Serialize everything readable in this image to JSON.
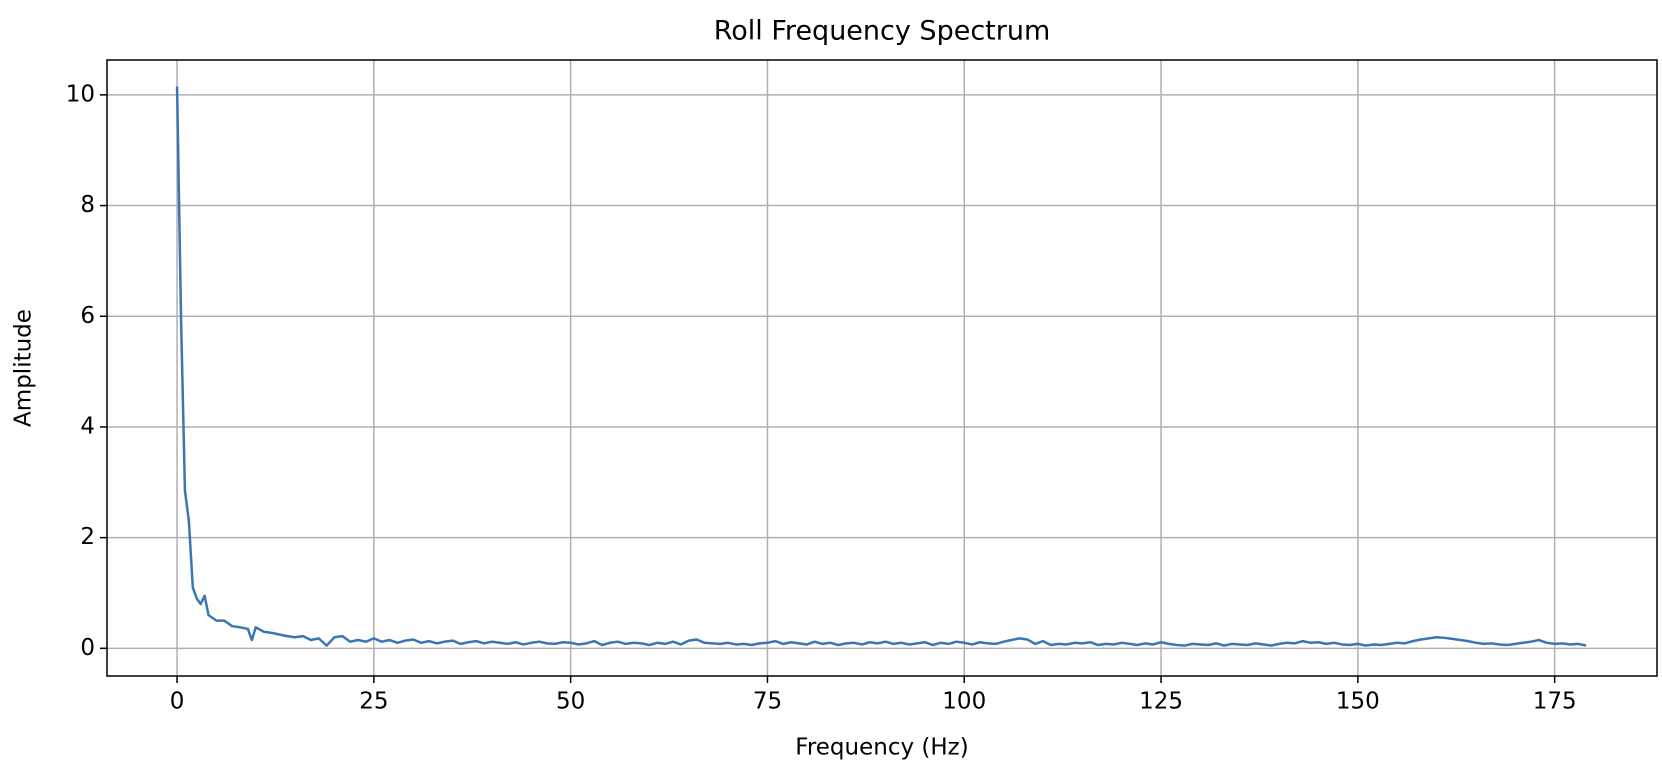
{
  "chart_data": {
    "type": "line",
    "title": "Roll Frequency Spectrum",
    "x_label": "Frequency (Hz)",
    "y_label": "Amplitude",
    "x": [
      0,
      0.5,
      1,
      1.5,
      2,
      2.5,
      3,
      3.5,
      4,
      5,
      6,
      7,
      8,
      9,
      9.5,
      10,
      11,
      12,
      13,
      14,
      15,
      16,
      17,
      18,
      19,
      20,
      21,
      22,
      23,
      24,
      25,
      26,
      27,
      28,
      29,
      30,
      31,
      32,
      33,
      34,
      35,
      36,
      37,
      38,
      39,
      40,
      41,
      42,
      43,
      44,
      45,
      46,
      47,
      48,
      49,
      50,
      51,
      52,
      53,
      54,
      55,
      56,
      57,
      58,
      59,
      60,
      61,
      62,
      63,
      64,
      65,
      66,
      67,
      68,
      69,
      70,
      71,
      72,
      73,
      74,
      75,
      76,
      77,
      78,
      79,
      80,
      81,
      82,
      83,
      84,
      85,
      86,
      87,
      88,
      89,
      90,
      91,
      92,
      93,
      94,
      95,
      96,
      97,
      98,
      99,
      100,
      101,
      102,
      103,
      104,
      105,
      106,
      107,
      108,
      109,
      110,
      111,
      112,
      113,
      114,
      115,
      116,
      117,
      118,
      119,
      120,
      121,
      122,
      123,
      124,
      125,
      126,
      127,
      128,
      129,
      130,
      131,
      132,
      133,
      134,
      135,
      136,
      137,
      138,
      139,
      140,
      141,
      142,
      143,
      144,
      145,
      146,
      147,
      148,
      149,
      150,
      151,
      152,
      153,
      154,
      155,
      156,
      157,
      158,
      159,
      160,
      161,
      162,
      163,
      164,
      165,
      166,
      167,
      168,
      169,
      170,
      171,
      172,
      173,
      174,
      175,
      176,
      177,
      178,
      179
    ],
    "series": [
      {
        "name": "Roll",
        "color": "#3b76b3",
        "values": [
          10.15,
          6,
          2.85,
          2.3,
          1.1,
          0.9,
          0.8,
          0.95,
          0.6,
          0.5,
          0.5,
          0.4,
          0.38,
          0.35,
          0.15,
          0.38,
          0.3,
          0.28,
          0.25,
          0.22,
          0.2,
          0.22,
          0.15,
          0.18,
          0.05,
          0.2,
          0.22,
          0.12,
          0.15,
          0.12,
          0.18,
          0.12,
          0.15,
          0.1,
          0.14,
          0.16,
          0.1,
          0.13,
          0.09,
          0.12,
          0.14,
          0.08,
          0.11,
          0.13,
          0.09,
          0.12,
          0.1,
          0.08,
          0.11,
          0.07,
          0.1,
          0.12,
          0.09,
          0.08,
          0.11,
          0.1,
          0.07,
          0.09,
          0.13,
          0.06,
          0.1,
          0.12,
          0.08,
          0.1,
          0.09,
          0.06,
          0.1,
          0.08,
          0.12,
          0.07,
          0.14,
          0.16,
          0.1,
          0.09,
          0.08,
          0.1,
          0.07,
          0.08,
          0.06,
          0.09,
          0.1,
          0.13,
          0.08,
          0.11,
          0.09,
          0.07,
          0.12,
          0.08,
          0.1,
          0.06,
          0.09,
          0.1,
          0.07,
          0.11,
          0.09,
          0.12,
          0.08,
          0.1,
          0.07,
          0.09,
          0.11,
          0.06,
          0.1,
          0.08,
          0.12,
          0.1,
          0.07,
          0.11,
          0.09,
          0.08,
          0.12,
          0.15,
          0.18,
          0.16,
          0.08,
          0.13,
          0.06,
          0.08,
          0.07,
          0.1,
          0.09,
          0.11,
          0.06,
          0.08,
          0.07,
          0.1,
          0.08,
          0.06,
          0.09,
          0.07,
          0.11,
          0.08,
          0.06,
          0.05,
          0.08,
          0.07,
          0.06,
          0.09,
          0.05,
          0.08,
          0.07,
          0.06,
          0.09,
          0.07,
          0.05,
          0.08,
          0.1,
          0.09,
          0.13,
          0.1,
          0.11,
          0.08,
          0.1,
          0.07,
          0.06,
          0.08,
          0.05,
          0.07,
          0.06,
          0.08,
          0.1,
          0.09,
          0.13,
          0.16,
          0.18,
          0.2,
          0.19,
          0.17,
          0.15,
          0.13,
          0.1,
          0.08,
          0.09,
          0.07,
          0.06,
          0.08,
          0.1,
          0.12,
          0.15,
          0.1,
          0.08,
          0.09,
          0.07,
          0.08,
          0.05
        ]
      }
    ],
    "xlim": [
      -8.9,
      188
    ],
    "xticks": [
      0,
      25,
      50,
      75,
      100,
      125,
      150,
      175
    ],
    "ylim": [
      -0.5,
      10.63
    ],
    "yticks": [
      0,
      2,
      4,
      6,
      8,
      10
    ],
    "grid": true
  }
}
